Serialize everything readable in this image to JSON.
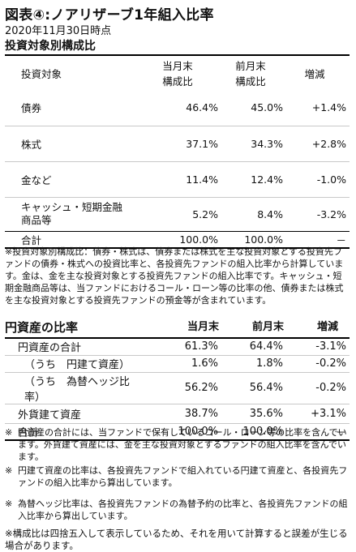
{
  "title": "図表④:ノアリザーブ1年組入比率",
  "date": "2020年11月30日時点",
  "section1": {
    "heading": "投資対象別構成比",
    "columns": [
      "投資対象",
      "当月末\n構成比",
      "前月末\n構成比",
      "増減"
    ],
    "rows": [
      {
        "label": "債券",
        "current": "46.4%",
        "previous": "45.0%",
        "change": "+1.4%"
      },
      {
        "label": "株式",
        "current": "37.1%",
        "previous": "34.3%",
        "change": "+2.8%"
      },
      {
        "label": "金など",
        "current": "11.4%",
        "previous": "12.4%",
        "change": "-1.0%"
      },
      {
        "label": "キャッシュ・短期金融\n商品等",
        "current": "5.2%",
        "previous": "8.4%",
        "change": "-3.2%"
      }
    ],
    "total": {
      "label": "合計",
      "current": "100.0%",
      "previous": "100.0%",
      "change": "－"
    },
    "note": "※投資対象別構成比：債券・株式は、債券または株式を主な投資対象とする投資先ファンドの債券・株式への投資比率と、各投資先ファンドの組入比率から計算しています。金は、金を主な投資対象とする投資先ファンドの組入比率です。キャッシュ・短期金融商品等は、当ファンドにおけるコール・ローン等の比率の他、債券または株式を主な投資対象とする投資先ファンドの預金等が含まれています。"
  },
  "section2": {
    "heading": "円資産の比率",
    "columns": [
      "",
      "当月末",
      "前月末",
      "増減"
    ],
    "rows": [
      {
        "label": "円資産の合計",
        "current": "61.3%",
        "previous": "64.4%",
        "change": "-3.1%"
      },
      {
        "label": "（うち　円建て資産）",
        "current": "1.6%",
        "previous": "1.8%",
        "change": "-0.2%"
      },
      {
        "label": "（うち　為替ヘッジ比率）",
        "current": "56.2%",
        "previous": "56.4%",
        "change": "-0.2%"
      },
      {
        "label": "外貨建て資産",
        "current": "38.7%",
        "previous": "35.6%",
        "change": "+3.1%"
      }
    ],
    "total": {
      "label": "合計",
      "current": "100.0%",
      "previous": "100.0%",
      "change": "－"
    }
  },
  "notes": [
    {
      "mark": "※",
      "text": "円資産の合計には、当ファンドで保有しているコール・ローン等の比率を含んでいます。外貨建て資産には、金を主な投資対象とするファンドの組入比率を含んでいます。"
    },
    {
      "mark": "※",
      "text": "円建て資産の比率は、各投資先ファンドで組入れている円建て資産と、各投資先ファンドの組入比率から算出しています。"
    },
    {
      "mark": "※",
      "text": "為替ヘッジ比率は、各投資先ファンドの為替予約の比率と、各投資先ファンドの組入比率から算出しています。"
    }
  ],
  "final_note": "※構成比は四捨五入して表示しているため、それを用いて計算すると誤差が生じる場合があります。"
}
